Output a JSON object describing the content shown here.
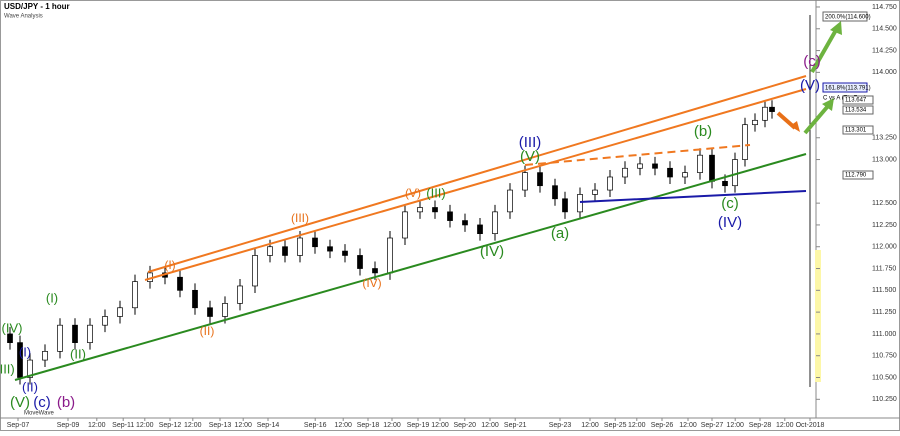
{
  "chart_data": {
    "type": "candlestick",
    "title": "USD/JPY - 1 hour",
    "subtitle": "Wave Analysis",
    "indicator": "MoveWave",
    "x": [
      1.25,
      2.5,
      3.75,
      5.625,
      7.5,
      9.375,
      11.25,
      13.125,
      15,
      16.875,
      18.75,
      20.625,
      22.5,
      24.375,
      26.25,
      28.125,
      30,
      31.875,
      33.75,
      35.625,
      37.5,
      39.375,
      41.25,
      43.125,
      45,
      46.875,
      48.75,
      50.625,
      52.5,
      54.375,
      56.25,
      58.125,
      60,
      61.875,
      63.75,
      65.625,
      67.5,
      69.375,
      70.625,
      72.5,
      74.375,
      76.25,
      78.125,
      80,
      81.875,
      83.75,
      85.625,
      87.5,
      89,
      90.625,
      91.875,
      93.125,
      94.375,
      95.625,
      96.5
    ],
    "open": [
      111.0,
      110.9,
      110.5,
      110.7,
      110.8,
      111.1,
      110.9,
      111.1,
      111.2,
      111.3,
      111.6,
      111.7,
      111.65,
      111.5,
      111.3,
      111.2,
      111.35,
      111.55,
      111.9,
      112.0,
      111.9,
      112.1,
      112.0,
      111.95,
      111.9,
      111.75,
      111.7,
      112.1,
      112.4,
      112.45,
      112.4,
      112.3,
      112.25,
      112.15,
      112.4,
      112.65,
      112.85,
      112.7,
      112.55,
      112.4,
      112.6,
      112.65,
      112.8,
      112.9,
      112.95,
      112.9,
      112.8,
      112.85,
      113.05,
      112.75,
      112.7,
      113.0,
      113.4,
      113.45,
      113.6
    ],
    "high": [
      111.08,
      110.98,
      110.78,
      110.88,
      111.18,
      111.18,
      111.18,
      111.28,
      111.38,
      111.68,
      111.78,
      111.78,
      111.73,
      111.58,
      111.38,
      111.43,
      111.63,
      111.98,
      112.08,
      112.08,
      112.18,
      112.18,
      112.08,
      112.03,
      111.98,
      111.83,
      112.18,
      112.48,
      112.53,
      112.53,
      112.48,
      112.38,
      112.33,
      112.48,
      112.73,
      112.93,
      112.93,
      112.78,
      112.63,
      112.68,
      112.73,
      112.88,
      112.98,
      113.03,
      113.03,
      112.98,
      112.93,
      113.13,
      113.13,
      112.83,
      113.08,
      113.48,
      113.53,
      113.68,
      113.68
    ],
    "low": [
      110.82,
      110.42,
      110.42,
      110.62,
      110.72,
      110.82,
      110.82,
      111.02,
      111.12,
      111.22,
      111.52,
      111.57,
      111.42,
      111.22,
      111.12,
      111.12,
      111.27,
      111.47,
      111.82,
      111.82,
      111.82,
      111.92,
      111.87,
      111.82,
      111.67,
      111.62,
      111.62,
      112.02,
      112.32,
      112.32,
      112.22,
      112.17,
      112.07,
      112.07,
      112.32,
      112.57,
      112.62,
      112.47,
      112.32,
      112.32,
      112.52,
      112.57,
      112.72,
      112.82,
      112.82,
      112.72,
      112.72,
      112.77,
      112.67,
      112.62,
      112.62,
      112.92,
      113.32,
      113.37,
      113.47
    ],
    "close": [
      110.9,
      110.5,
      110.7,
      110.8,
      111.1,
      110.9,
      111.1,
      111.2,
      111.3,
      111.6,
      111.7,
      111.65,
      111.5,
      111.3,
      111.2,
      111.35,
      111.55,
      111.9,
      112.0,
      111.9,
      112.1,
      112.0,
      111.95,
      111.9,
      111.75,
      111.7,
      112.1,
      112.4,
      112.45,
      112.4,
      112.3,
      112.25,
      112.15,
      112.4,
      112.65,
      112.85,
      112.7,
      112.55,
      112.4,
      112.6,
      112.65,
      112.8,
      112.9,
      112.95,
      112.9,
      112.8,
      112.85,
      113.05,
      112.75,
      112.7,
      113.0,
      113.4,
      113.45,
      113.6,
      113.55
    ],
    "xlim": [
      0,
      102
    ],
    "ylim": [
      110.07,
      114.83
    ],
    "xticks": [
      {
        "value": 2.25,
        "label": "Sep-07"
      },
      {
        "value": 8.5,
        "label": "Sep-09"
      },
      {
        "value": 12.1,
        "label": "12:00"
      },
      {
        "value": 15.4,
        "label": "Sep-11"
      },
      {
        "value": 18.1,
        "label": "12:00"
      },
      {
        "value": 21.25,
        "label": "Sep-12"
      },
      {
        "value": 24.1,
        "label": "12:00"
      },
      {
        "value": 27.5,
        "label": "Sep-13"
      },
      {
        "value": 30.4,
        "label": "12:00"
      },
      {
        "value": 33.5,
        "label": "Sep-14"
      },
      {
        "value": 39.4,
        "label": "Sep-16"
      },
      {
        "value": 42.9,
        "label": "12:00"
      },
      {
        "value": 46,
        "label": "Sep-18"
      },
      {
        "value": 49,
        "label": "12:00"
      },
      {
        "value": 52.25,
        "label": "Sep-19"
      },
      {
        "value": 55,
        "label": "12:00"
      },
      {
        "value": 58.1,
        "label": "Sep-20"
      },
      {
        "value": 61.25,
        "label": "12:00"
      },
      {
        "value": 64.4,
        "label": "Sep-21"
      },
      {
        "value": 70,
        "label": "Sep-23"
      },
      {
        "value": 73.75,
        "label": "12:00"
      },
      {
        "value": 76.9,
        "label": "Sep-25"
      },
      {
        "value": 79.6,
        "label": "12:00"
      },
      {
        "value": 82.75,
        "label": "Sep-26"
      },
      {
        "value": 86,
        "label": "12:00"
      },
      {
        "value": 89,
        "label": "Sep-27"
      },
      {
        "value": 91.9,
        "label": "12:00"
      },
      {
        "value": 95,
        "label": "Sep-28"
      },
      {
        "value": 98.1,
        "label": "12:00"
      },
      {
        "value": 101.25,
        "label": "Oct-2018"
      }
    ],
    "yticks": [
      {
        "value": 110.25,
        "label": "110.250"
      },
      {
        "value": 110.5,
        "label": "110.500"
      },
      {
        "value": 110.75,
        "label": "110.750"
      },
      {
        "value": 111.0,
        "label": "111.000"
      },
      {
        "value": 111.25,
        "label": "111.250"
      },
      {
        "value": 111.5,
        "label": "111.500"
      },
      {
        "value": 111.75,
        "label": "111.750"
      },
      {
        "value": 112.0,
        "label": "112.000"
      },
      {
        "value": 112.25,
        "label": "112.250"
      },
      {
        "value": 112.5,
        "label": "112.500"
      },
      {
        "value": 113.0,
        "label": "113.000"
      },
      {
        "value": 113.25,
        "label": "113.250"
      },
      {
        "value": 114.0,
        "label": "114.000"
      },
      {
        "value": 114.25,
        "label": "114.250"
      },
      {
        "value": 114.5,
        "label": "114.500"
      },
      {
        "value": 114.75,
        "label": "114.750"
      }
    ],
    "up_color": "#ffffff",
    "down_color": "#000000",
    "waves": [
      "(c)",
      "(V)",
      "(III)",
      "(V)",
      "(b)",
      "(c)",
      "(IV)",
      "(a)",
      "(IV)",
      "(IV)",
      "(V)",
      "(III)",
      "(III)",
      "(I)",
      "(II)",
      "(I)",
      "(II)",
      "(IV)",
      "(I)",
      "(III)",
      "(II)",
      "(V)",
      "(c)",
      "(b)"
    ],
    "price_labels": [
      "200.0%(114.600)",
      "161.8%(113.791)",
      "C vs A (Zig Zag)",
      "113.647",
      "113.534",
      "113.301",
      "112.790"
    ]
  }
}
